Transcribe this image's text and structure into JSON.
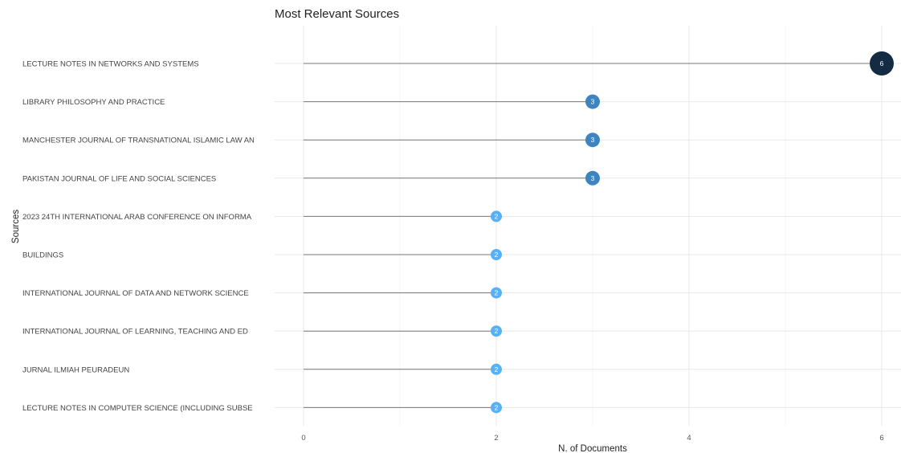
{
  "chart_data": {
    "type": "lollipop",
    "title": "Most Relevant Sources",
    "xlabel": "N. of Documents",
    "ylabel": "Sources",
    "xlim": [
      0,
      6
    ],
    "x_ticks": [
      0,
      2,
      4,
      6
    ],
    "grid": true,
    "legend": "none",
    "categories": [
      "LECTURE NOTES IN NETWORKS AND SYSTEMS",
      "LIBRARY PHILOSOPHY AND PRACTICE",
      "MANCHESTER JOURNAL OF TRANSNATIONAL ISLAMIC LAW AN",
      "PAKISTAN JOURNAL OF LIFE AND SOCIAL SCIENCES",
      "2023 24TH INTERNATIONAL ARAB CONFERENCE ON INFORMA",
      "BUILDINGS",
      "INTERNATIONAL JOURNAL OF DATA AND NETWORK SCIENCE",
      "INTERNATIONAL JOURNAL OF LEARNING, TEACHING AND ED",
      "JURNAL ILMIAH PEURADEUN",
      "LECTURE NOTES IN COMPUTER SCIENCE (INCLUDING SUBSE"
    ],
    "values": [
      6,
      3,
      3,
      3,
      2,
      2,
      2,
      2,
      2,
      2
    ],
    "colors": {
      "6": "#132b43",
      "3": "#3d85c0",
      "2": "#56b1f7"
    }
  }
}
